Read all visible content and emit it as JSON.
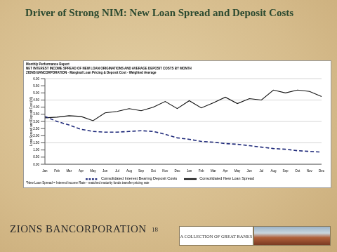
{
  "slide": {
    "title": "Driver of Strong NIM: New Loan Spread and Deposit Costs",
    "report_label": "Monthly Performance Report",
    "footnote": "*New Loan Spread = Interest Income Rate - matched maturity funds transfer pricing rate",
    "footer_left": "ZIONS BANCORPORATION",
    "page": "18",
    "footer_box": "A COLLECTION OF GREAT BANKS"
  },
  "chart_data": {
    "type": "line",
    "title": "NET INTEREST INCOME SPREAD OF NEW LOAN ORIGINATIONS AND AVERAGE DEPOSIT COSTS BY MONTH",
    "subtitle": "ZIONS BANCORPORATION - Marginal Loan Pricing & Deposit Cost - Weighted Average",
    "y_label": "Loan Spread and Deposit Cost (%)",
    "categories": [
      "Jan",
      "Feb",
      "Mar",
      "Apr",
      "May",
      "Jun",
      "Jul",
      "Aug",
      "Sep",
      "Oct",
      "Nov",
      "Dec",
      "Jan",
      "Feb",
      "Mar",
      "Apr",
      "May",
      "Jun",
      "Jul",
      "Aug",
      "Sep",
      "Oct",
      "Nov",
      "Dec"
    ],
    "series": [
      {
        "name": "Consolidated New Loan Spread",
        "color": "#111111",
        "line_style": "solid",
        "marker": "none",
        "values": [
          3.25,
          3.3,
          3.4,
          3.35,
          3.05,
          3.6,
          3.7,
          3.9,
          3.75,
          4.0,
          4.4,
          3.9,
          4.45,
          3.95,
          4.3,
          4.7,
          4.25,
          4.6,
          4.5,
          5.2,
          5.0,
          5.2,
          5.1,
          4.75
        ]
      },
      {
        "name": "Consolidated Interest Bearing Deposit Costs",
        "color": "#1f2a7a",
        "line_style": "dashed",
        "marker": "none",
        "values": [
          3.35,
          3.0,
          2.75,
          2.45,
          2.3,
          2.25,
          2.25,
          2.3,
          2.35,
          2.3,
          2.1,
          1.85,
          1.75,
          1.6,
          1.55,
          1.45,
          1.4,
          1.3,
          1.2,
          1.1,
          1.05,
          0.95,
          0.9,
          0.85
        ]
      }
    ],
    "ylim": [
      0,
      6
    ],
    "yticks": [
      {
        "value": 0,
        "label": "0.00"
      },
      {
        "value": 0.5,
        "label": "0.50"
      },
      {
        "value": 1,
        "label": "1.00"
      },
      {
        "value": 1.5,
        "label": "1.50"
      },
      {
        "value": 2,
        "label": "2.00"
      },
      {
        "value": 2.5,
        "label": "2.50"
      },
      {
        "value": 3,
        "label": "3.00"
      },
      {
        "value": 3.5,
        "label": "3.50"
      },
      {
        "value": 4,
        "label": "4.00"
      },
      {
        "value": 4.5,
        "label": "4.50"
      },
      {
        "value": 5,
        "label": "5.00"
      },
      {
        "value": 5.5,
        "label": "5.50"
      },
      {
        "value": 6,
        "label": "6.00"
      }
    ],
    "grid": true,
    "legend": "bottom"
  }
}
